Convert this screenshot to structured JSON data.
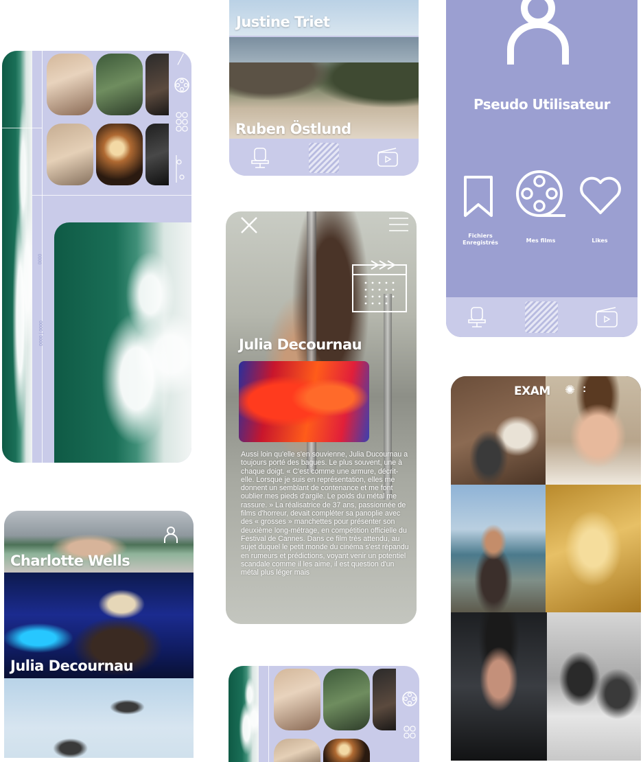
{
  "directors": {
    "justine": "Justine Triet",
    "ruben": "Ruben Östlund",
    "charlotte": "Charlotte Wells",
    "julia": "Julia Decournau"
  },
  "profile": {
    "username": "Pseudo Utilisateur",
    "menu": {
      "saved_line1": "Fichiers",
      "saved_line2": "Enregistrés",
      "films": "Mes films",
      "likes": "Likes"
    }
  },
  "article": {
    "title": "Julia Decournau",
    "body": "Aussi loin qu'elle s'en souvienne, Julia Ducournau a toujours porté des bagues. Le plus souvent, une à chaque doigt. « C'est comme une armure, décrit-elle. Lorsque je suis en représentation, elles me donnent un semblant de contenance et me font oublier mes pieds d'argile. Le poids du métal me rassure. » La réalisatrice de 37 ans, passionnée de films d'horreur, devait compléter sa panoplie avec des « grosses » manchettes pour présenter son deuxième long-métrage, en compétition officielle du Festival de Cannes. Dans ce film très attendu, au sujet duquel le petit monde du cinéma s'est répandu en rumeurs et prédictions, voyant venir un potentiel scandale comme il les aime, il est question d'un métal plus léger mais"
  },
  "exam": {
    "label": "EXAM"
  },
  "ruler_labels": {
    "a": "0000",
    "b": "0000 | 0000"
  },
  "colors": {
    "lavender": "#c9cbe9",
    "profile_purple": "#9b9fd1",
    "white": "#ffffff"
  },
  "icons": {
    "user": "user-icon",
    "seat": "cinema-seat-icon",
    "clapper": "clapperboard-icon",
    "bookmark": "bookmark-icon",
    "reel": "film-reel-icon",
    "heart": "heart-icon",
    "close": "close-icon",
    "menu": "hamburger-icon",
    "calendar": "calendar-icon"
  }
}
